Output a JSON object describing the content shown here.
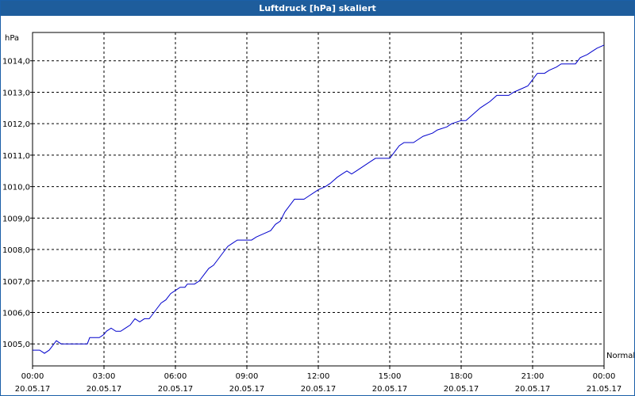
{
  "window": {
    "title": "Luftdruck [hPa] skaliert"
  },
  "chart_data": {
    "type": "line",
    "title": "Luftdruck [hPa] skaliert",
    "ylabel": "hPa",
    "xlabel": "",
    "ylim": [
      1004.3,
      1014.9
    ],
    "xlim_hours": [
      0,
      24
    ],
    "grid": true,
    "yticks": [
      "1005,0",
      "1006,0",
      "1007,0",
      "1008,0",
      "1009,0",
      "1010,0",
      "1011,0",
      "1012,0",
      "1013,0",
      "1014,0"
    ],
    "ytick_values": [
      1005,
      1006,
      1007,
      1008,
      1009,
      1010,
      1011,
      1012,
      1013,
      1014
    ],
    "xticks": [
      {
        "time": "00:00",
        "date": "20.05.17"
      },
      {
        "time": "03:00",
        "date": "20.05.17"
      },
      {
        "time": "06:00",
        "date": "20.05.17"
      },
      {
        "time": "09:00",
        "date": "20.05.17"
      },
      {
        "time": "12:00",
        "date": "20.05.17"
      },
      {
        "time": "15:00",
        "date": "20.05.17"
      },
      {
        "time": "18:00",
        "date": "20.05.17"
      },
      {
        "time": "21:00",
        "date": "20.05.17"
      },
      {
        "time": "00:00",
        "date": "21.05.17"
      }
    ],
    "annotation": "Normal",
    "series": [
      {
        "color": "#0000cc",
        "points": [
          [
            0.0,
            1004.8
          ],
          [
            0.3,
            1004.8
          ],
          [
            0.5,
            1004.7
          ],
          [
            0.7,
            1004.8
          ],
          [
            0.8,
            1004.9
          ],
          [
            1.0,
            1005.1
          ],
          [
            1.2,
            1005.0
          ],
          [
            1.5,
            1005.0
          ],
          [
            2.0,
            1005.0
          ],
          [
            2.2,
            1005.0
          ],
          [
            2.3,
            1005.0
          ],
          [
            2.4,
            1005.2
          ],
          [
            2.8,
            1005.2
          ],
          [
            3.0,
            1005.3
          ],
          [
            3.1,
            1005.4
          ],
          [
            3.3,
            1005.5
          ],
          [
            3.5,
            1005.4
          ],
          [
            3.7,
            1005.4
          ],
          [
            3.9,
            1005.5
          ],
          [
            4.1,
            1005.6
          ],
          [
            4.3,
            1005.8
          ],
          [
            4.5,
            1005.7
          ],
          [
            4.7,
            1005.8
          ],
          [
            4.9,
            1005.8
          ],
          [
            5.0,
            1005.9
          ],
          [
            5.2,
            1006.1
          ],
          [
            5.4,
            1006.3
          ],
          [
            5.6,
            1006.4
          ],
          [
            5.8,
            1006.6
          ],
          [
            6.0,
            1006.7
          ],
          [
            6.2,
            1006.8
          ],
          [
            6.4,
            1006.8
          ],
          [
            6.5,
            1006.9
          ],
          [
            6.8,
            1006.9
          ],
          [
            7.0,
            1007.0
          ],
          [
            7.2,
            1007.2
          ],
          [
            7.4,
            1007.4
          ],
          [
            7.6,
            1007.5
          ],
          [
            7.8,
            1007.7
          ],
          [
            8.0,
            1007.9
          ],
          [
            8.2,
            1008.1
          ],
          [
            8.4,
            1008.2
          ],
          [
            8.6,
            1008.3
          ],
          [
            9.0,
            1008.3
          ],
          [
            9.2,
            1008.3
          ],
          [
            9.4,
            1008.4
          ],
          [
            9.7,
            1008.5
          ],
          [
            10.0,
            1008.6
          ],
          [
            10.2,
            1008.8
          ],
          [
            10.4,
            1008.9
          ],
          [
            10.6,
            1009.2
          ],
          [
            10.8,
            1009.4
          ],
          [
            11.0,
            1009.6
          ],
          [
            11.4,
            1009.6
          ],
          [
            11.6,
            1009.7
          ],
          [
            11.8,
            1009.8
          ],
          [
            12.0,
            1009.9
          ],
          [
            12.3,
            1010.0
          ],
          [
            12.5,
            1010.1
          ],
          [
            12.8,
            1010.3
          ],
          [
            13.0,
            1010.4
          ],
          [
            13.2,
            1010.5
          ],
          [
            13.4,
            1010.4
          ],
          [
            13.6,
            1010.5
          ],
          [
            13.8,
            1010.6
          ],
          [
            14.0,
            1010.7
          ],
          [
            14.2,
            1010.8
          ],
          [
            14.4,
            1010.9
          ],
          [
            15.0,
            1010.9
          ],
          [
            15.2,
            1011.1
          ],
          [
            15.4,
            1011.3
          ],
          [
            15.6,
            1011.4
          ],
          [
            16.0,
            1011.4
          ],
          [
            16.2,
            1011.5
          ],
          [
            16.4,
            1011.6
          ],
          [
            16.8,
            1011.7
          ],
          [
            17.0,
            1011.8
          ],
          [
            17.4,
            1011.9
          ],
          [
            17.6,
            1012.0
          ],
          [
            18.0,
            1012.1
          ],
          [
            18.2,
            1012.1
          ],
          [
            18.5,
            1012.3
          ],
          [
            18.8,
            1012.5
          ],
          [
            19.0,
            1012.6
          ],
          [
            19.2,
            1012.7
          ],
          [
            19.5,
            1012.9
          ],
          [
            20.0,
            1012.9
          ],
          [
            20.2,
            1013.0
          ],
          [
            20.5,
            1013.1
          ],
          [
            20.8,
            1013.2
          ],
          [
            21.0,
            1013.4
          ],
          [
            21.2,
            1013.6
          ],
          [
            21.5,
            1013.6
          ],
          [
            21.7,
            1013.7
          ],
          [
            22.0,
            1013.8
          ],
          [
            22.2,
            1013.9
          ],
          [
            22.8,
            1013.9
          ],
          [
            23.0,
            1014.1
          ],
          [
            23.3,
            1014.2
          ],
          [
            23.5,
            1014.3
          ],
          [
            23.7,
            1014.4
          ],
          [
            24.0,
            1014.5
          ]
        ]
      }
    ]
  }
}
